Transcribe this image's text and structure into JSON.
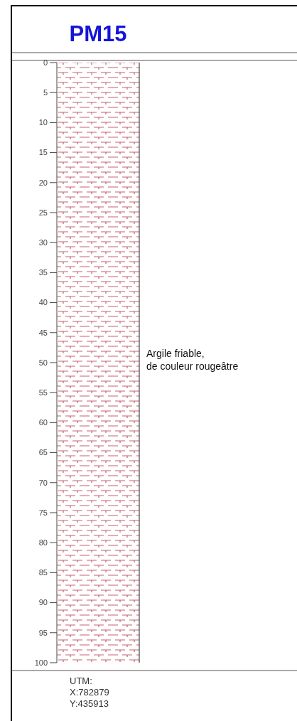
{
  "chart_data": {
    "type": "bar",
    "title": "PM15",
    "categories": [
      null
    ],
    "base": [
      0
    ],
    "values": [
      100
    ],
    "color": "#b0303c",
    "ylim": [
      100,
      0
    ],
    "yticks": [
      0,
      5,
      10,
      15,
      20,
      25,
      30,
      35,
      40,
      45,
      50,
      55,
      60,
      65,
      70,
      75,
      80,
      85,
      90,
      95,
      100
    ],
    "annotations": [
      "Argile friable,\nde couleur rougeâtre",
      "UTM:\nX:782879\nY:435913"
    ]
  }
}
